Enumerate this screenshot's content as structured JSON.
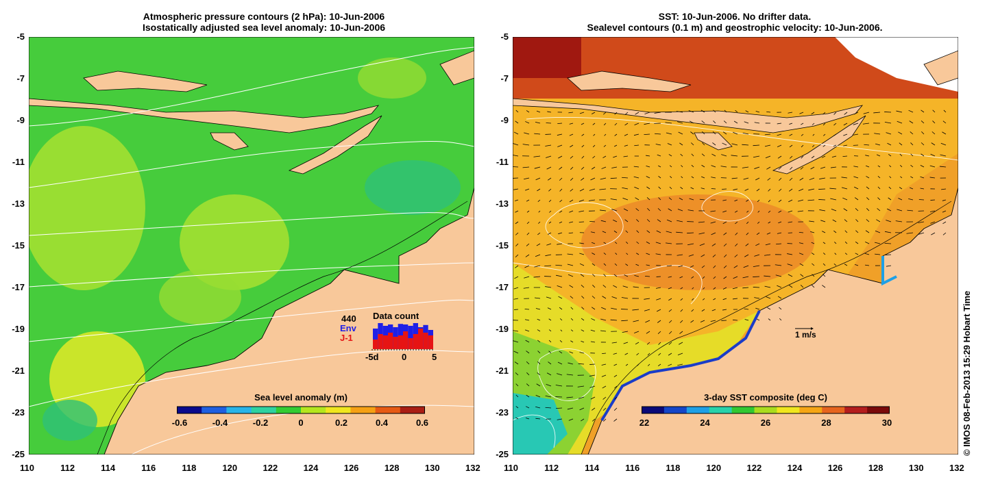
{
  "left": {
    "title_line1": "Atmospheric pressure contours (2 hPa): 10-Jun-2006",
    "title_line2": "Isostatically adjusted sea level anomaly: 10-Jun-2006",
    "colorbar": {
      "title": "Sea level anomaly (m)",
      "labels": [
        "-0.6",
        "-0.4",
        "-0.2",
        "0",
        "0.2",
        "0.4",
        "0.6"
      ],
      "colors": [
        "#0a0a8c",
        "#1f5fe0",
        "#28b4e8",
        "#2fd2a0",
        "#33cc33",
        "#b4e61e",
        "#f0e61e",
        "#f5a014",
        "#e65a14",
        "#aa1e14"
      ]
    },
    "data_count": {
      "label": "Data count",
      "total": "440",
      "env_label": "Env",
      "j1_label": "J-1",
      "x_labels": [
        "-5d",
        "0",
        "5"
      ],
      "env_color": "#1f1fe6",
      "j1_color": "#e61414",
      "bars_env": [
        0.75,
        0.95,
        0.85,
        0.9,
        0.8,
        0.92,
        0.9,
        0.85,
        0.95,
        0.8,
        0.88,
        0.7
      ],
      "bars_j1": [
        0.35,
        0.55,
        0.5,
        0.6,
        0.45,
        0.5,
        0.65,
        0.4,
        0.55,
        0.75,
        0.6,
        0.5
      ]
    }
  },
  "right": {
    "title_line1": "SST: 10-Jun-2006. No drifter data.",
    "title_line2": "Sealevel contours (0.1 m) and geostrophic velocity: 10-Jun-2006.",
    "colorbar": {
      "title": "3-day SST composite (deg C)",
      "labels": [
        "22",
        "24",
        "26",
        "28",
        "30"
      ],
      "colors": [
        "#0a0a78",
        "#1446c8",
        "#1ea0e6",
        "#28d2aa",
        "#32c832",
        "#aadc1e",
        "#f0e61e",
        "#f5a514",
        "#e6641e",
        "#b41e1e",
        "#7a0a0a"
      ]
    },
    "scale_label": "1 m/s"
  },
  "axes": {
    "x_ticks": [
      "110",
      "112",
      "114",
      "116",
      "118",
      "120",
      "122",
      "124",
      "126",
      "128",
      "130",
      "132"
    ],
    "y_ticks": [
      "-5",
      "-7",
      "-9",
      "-11",
      "-13",
      "-15",
      "-17",
      "-19",
      "-21",
      "-23",
      "-25"
    ]
  },
  "credit": "© IMOS 08-Feb-2013 15:29 Hobart Time",
  "colors": {
    "land": "#f8c89a",
    "ocean_green": "#46cc3c",
    "ocean_light": "#a8e030",
    "sst_orange": "#f0a028",
    "sst_red": "#c83214"
  }
}
